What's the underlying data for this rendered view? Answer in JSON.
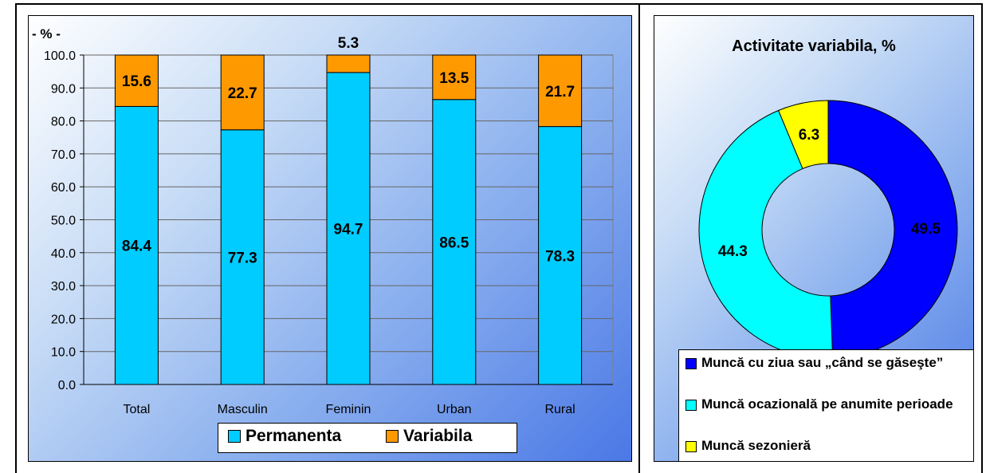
{
  "chart_data": [
    {
      "type": "bar",
      "stacked": true,
      "ylabel": "- % -",
      "ylim": [
        0,
        100
      ],
      "yticks": [
        "0.0",
        "10.0",
        "20.0",
        "30.0",
        "40.0",
        "50.0",
        "60.0",
        "70.0",
        "80.0",
        "90.0",
        "100.0"
      ],
      "categories": [
        "Total",
        "Masculin",
        "Feminin",
        "Urban",
        "Rural"
      ],
      "series": [
        {
          "name": "Permanenta",
          "color": "#00ccff",
          "values": [
            84.4,
            77.3,
            94.7,
            86.5,
            78.3
          ],
          "labels": [
            "84.4",
            "77.3",
            "94.7",
            "86.5",
            "78.3"
          ]
        },
        {
          "name": "Variabila",
          "color": "#ff9900",
          "values": [
            15.6,
            22.7,
            5.3,
            13.5,
            21.7
          ],
          "labels": [
            "15.6",
            "22.7",
            "5.3",
            "13.5",
            "21.7"
          ]
        }
      ],
      "grid": true,
      "legend": "bottom"
    },
    {
      "type": "pie",
      "donut": true,
      "title": "Activitate variabila, %",
      "slices": [
        {
          "name": "Muncă cu ziua sau „când se găseşte”",
          "value": 49.5,
          "label": "49.5",
          "color": "#0000ff"
        },
        {
          "name": "Muncă ocazională pe anumite perioade",
          "value": 44.3,
          "label": "44.3",
          "color": "#00ffff"
        },
        {
          "name": "Muncă sezonieră",
          "value": 6.3,
          "label": "6.3",
          "color": "#ffff00"
        }
      ],
      "legend": "bottom"
    }
  ]
}
